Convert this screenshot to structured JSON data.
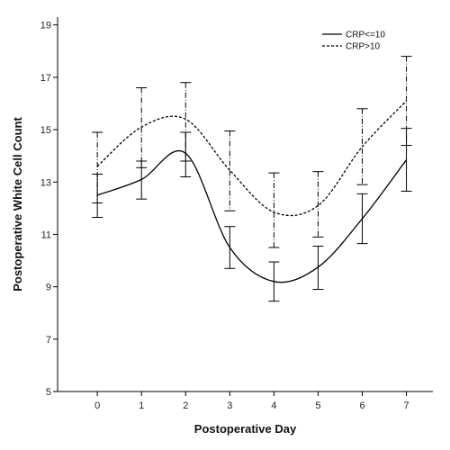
{
  "chart_data": {
    "type": "line",
    "xlabel": "Postoperative Day",
    "ylabel": "Postoperative White Cell Count",
    "x": [
      0,
      1,
      2,
      3,
      4,
      5,
      6,
      7
    ],
    "xlim": [
      -0.9,
      7.6
    ],
    "ylim": [
      5,
      19.3
    ],
    "x_ticks": [
      "0",
      "1",
      "2",
      "3",
      "4",
      "5",
      "6",
      "7"
    ],
    "y_ticks": [
      "5",
      "7",
      "9",
      "11",
      "13",
      "15",
      "17",
      "19"
    ],
    "grid": false,
    "legend_position": "top-right",
    "series": [
      {
        "name": "CRP<=10",
        "line_style": "solid",
        "color": "#000000",
        "values": [
          12.5,
          13.1,
          14.1,
          10.5,
          9.2,
          9.75,
          11.6,
          13.85
        ],
        "error_low": [
          11.65,
          12.35,
          13.2,
          9.7,
          8.45,
          8.9,
          10.65,
          12.65
        ],
        "error_high": [
          13.3,
          13.8,
          14.9,
          11.3,
          9.95,
          10.55,
          12.55,
          15.05
        ]
      },
      {
        "name": "CRP>10",
        "line_style": "dashed",
        "color": "#000000",
        "values": [
          13.6,
          15.1,
          15.4,
          13.45,
          11.85,
          12.1,
          14.35,
          16.1
        ],
        "error_low": [
          12.2,
          13.55,
          13.8,
          11.9,
          10.5,
          10.9,
          12.9,
          14.4
        ],
        "error_high": [
          14.9,
          16.6,
          16.8,
          14.95,
          13.35,
          13.4,
          15.8,
          17.8
        ]
      }
    ]
  }
}
